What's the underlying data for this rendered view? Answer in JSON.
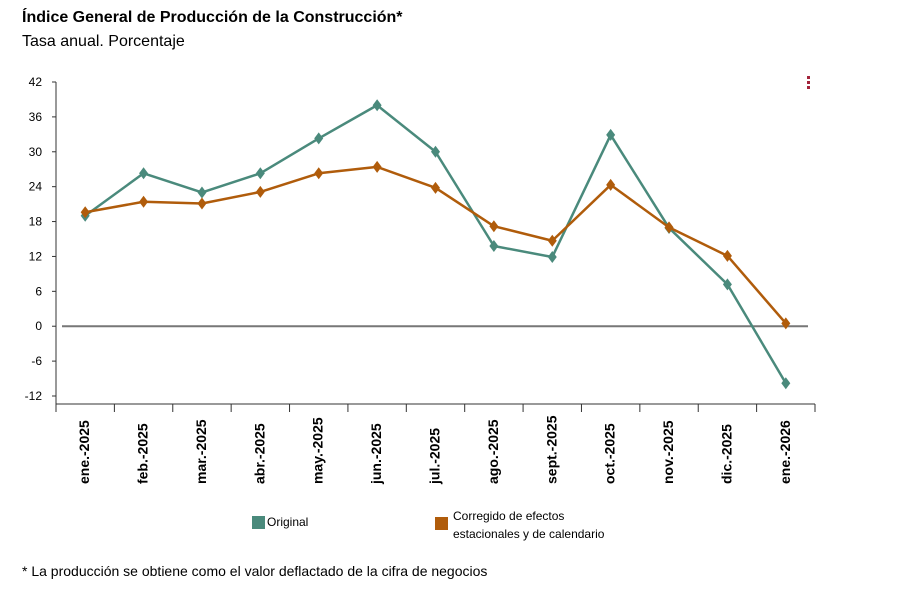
{
  "header": {
    "title": "Índice General de Producción de la Construcción*",
    "subtitle": "Tasa anual. Porcentaje"
  },
  "menu": {
    "icon": "more-vertical-icon"
  },
  "legend": {
    "original": "Original",
    "corrected": "Corregido de efectos estacionales y de calendario"
  },
  "footnote": "* La producción se obtiene como el valor deflactado de la cifra de negocios",
  "colors": {
    "original": "#4a8a7c",
    "corrected": "#b05c0b",
    "zero_line": "#777777",
    "menu": "#a3243b"
  },
  "chart_data": {
    "type": "line",
    "title": "Índice General de Producción de la Construcción*",
    "ylabel": "Tasa anual. Porcentaje",
    "categories": [
      "ene.-2025",
      "feb.-2025",
      "mar.-2025",
      "abr.-2025",
      "may.-2025",
      "jun.-2025",
      "jul.-2025",
      "ago.-2025",
      "sept.-2025",
      "oct.-2025",
      "nov.-2025",
      "dic.-2025",
      "ene.-2026"
    ],
    "yticks": [
      "42",
      "36",
      "30",
      "24",
      "18",
      "12",
      "6",
      "0",
      "-6",
      "-12"
    ],
    "ylim": [
      -12,
      42
    ],
    "series": [
      {
        "name": "Original",
        "values": [
          19.0,
          26.3,
          23.0,
          26.3,
          32.3,
          38.0,
          30.0,
          13.8,
          11.9,
          32.9,
          16.9,
          7.2,
          -9.8
        ]
      },
      {
        "name": "Corregido de efectos estacionales y de calendario",
        "values": [
          19.6,
          21.4,
          21.1,
          23.1,
          26.3,
          27.4,
          23.8,
          17.2,
          14.7,
          24.3,
          17.0,
          12.1,
          0.5
        ]
      }
    ]
  }
}
